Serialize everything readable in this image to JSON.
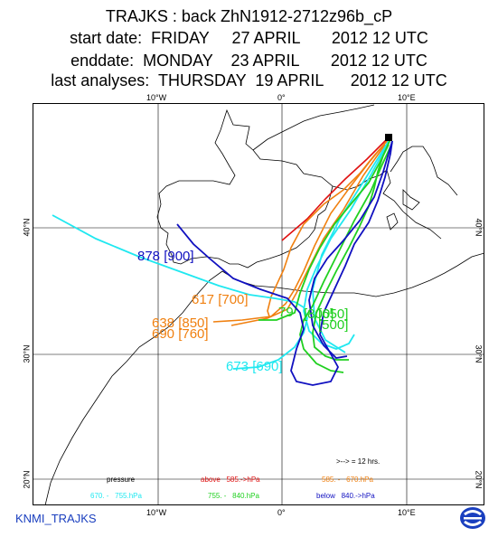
{
  "header": {
    "line1": "TRAJKS : back ZhN1912-2712z96b_cP",
    "line2": "start date:  FRIDAY     27 APRIL       2012 12 UTC",
    "line3": "enddate:  MONDAY    23 APRIL       2012 12 UTC",
    "line4": "last analyses:  THURSDAY  19 APRIL      2012 12 UTC"
  },
  "axes": {
    "top_ticks": [
      "10°W",
      "0°",
      "10°E"
    ],
    "bottom_ticks": [
      "10°W",
      "0°",
      "10°E"
    ],
    "left_ticks": [
      "40°N",
      "30°N",
      "20°N"
    ],
    "right_ticks": [
      "40°N",
      "30°N",
      "20°N"
    ]
  },
  "labels": {
    "cyan_start": "878 [900]",
    "blue_start": "878 [900]",
    "orange_a": "617 [700]",
    "orange_b": "638 [850]",
    "orange_c": "690 [760]",
    "cyan_low": "673 [690]",
    "green_a": "79",
    "green_b": "[800]",
    "green_c": "[650]",
    "green_d": "[500]"
  },
  "legend": {
    "interval": ">--> = 12 hrs.",
    "pressure": "pressure",
    "above": "above   585.->hPa",
    "orange_range": "585. -   670.hPa",
    "cyan_range": "670. -   755.hPa",
    "green_range": "755. -   840.hPa",
    "below": "below   840.->hPa"
  },
  "colors": {
    "red": "#e01010",
    "orange": "#f08010",
    "cyan": "#20e8f0",
    "green": "#20d020",
    "blue": "#1010c0"
  },
  "footer": {
    "left": "KNMI_TRAJKS",
    "logo": "knmi-logo-icon"
  }
}
